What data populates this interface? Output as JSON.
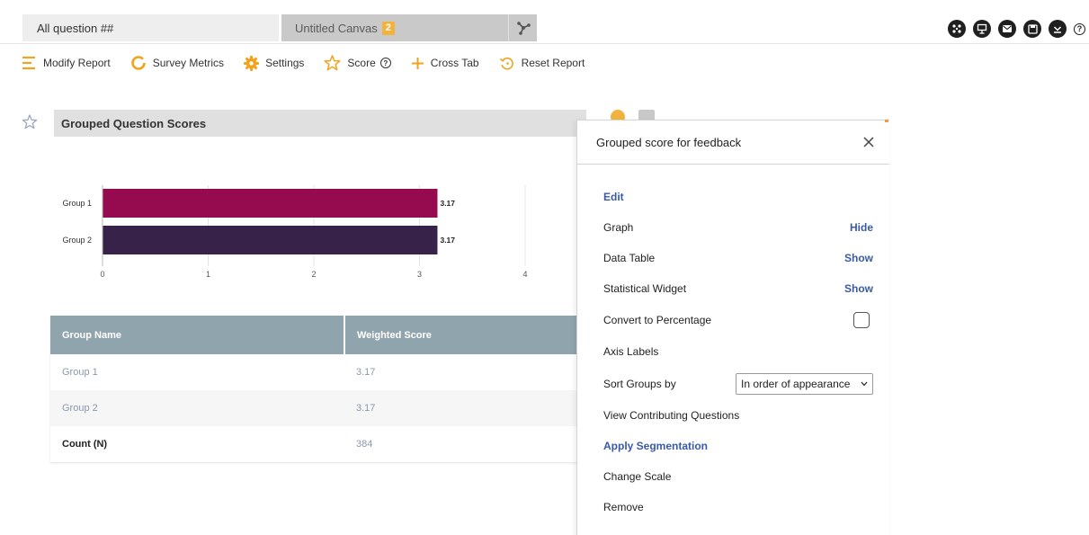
{
  "tabs": {
    "active_label": "All question ##",
    "inactive_label": "Untitled Canvas",
    "inactive_badge": "2"
  },
  "top_icons": [
    "network-share-icon",
    "presentation-icon",
    "email-icon",
    "save-icon",
    "download-icon",
    "help-icon"
  ],
  "toolbar": {
    "modify_report": "Modify Report",
    "survey_metrics": "Survey Metrics",
    "settings": "Settings",
    "score": "Score",
    "cross_tab": "Cross Tab",
    "reset_report": "Reset Report",
    "accent_color": "#f2a31b"
  },
  "widget": {
    "title": "Grouped Question Scores"
  },
  "chart_data": {
    "type": "bar",
    "orientation": "horizontal",
    "categories": [
      "Group 1",
      "Group 2"
    ],
    "values": [
      3.17,
      3.17
    ],
    "value_labels": [
      "3.17",
      "3.17"
    ],
    "colors": [
      "#960a4f",
      "#37234a"
    ],
    "xlim": [
      0,
      4
    ],
    "xticks": [
      "0",
      "1",
      "2",
      "3",
      "4"
    ],
    "grid": true,
    "legend": "none"
  },
  "table": {
    "headers": [
      "Group Name",
      "Weighted Score"
    ],
    "rows": [
      [
        "Group 1",
        "3.17"
      ],
      [
        "Group 2",
        "3.17"
      ]
    ],
    "count_label": "Count (N)",
    "count_value": "384"
  },
  "panel": {
    "title": "Grouped score for feedback",
    "edit": "Edit",
    "graph": "Graph",
    "graph_action": "Hide",
    "data_table": "Data Table",
    "data_table_action": "Show",
    "statistical_widget": "Statistical Widget",
    "statistical_widget_action": "Show",
    "convert_percentage": "Convert to Percentage",
    "axis_labels": "Axis Labels",
    "sort_groups_by": "Sort Groups by",
    "sort_value": "In order of appearance",
    "view_contributing": "View Contributing Questions",
    "apply_segmentation": "Apply Segmentation",
    "change_scale": "Change Scale",
    "remove": "Remove"
  }
}
